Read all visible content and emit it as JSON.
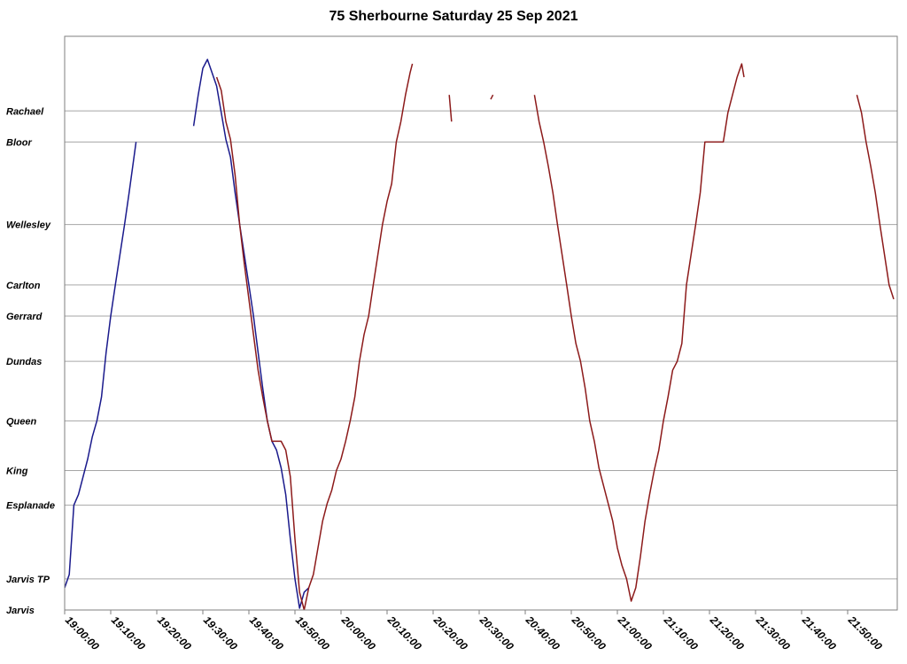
{
  "chart_data": {
    "type": "line",
    "title": "75 Sherbourne Saturday 25 Sep 2021",
    "xlabel": "",
    "ylabel": "",
    "x_unit": "time of day",
    "xlim": [
      "19:00:00",
      "21:58:00"
    ],
    "x_ticks": [
      "19:00:00",
      "19:10:00",
      "19:20:00",
      "19:30:00",
      "19:40:00",
      "19:50:00",
      "20:00:00",
      "20:10:00",
      "20:20:00",
      "20:30:00",
      "20:40:00",
      "20:50:00",
      "21:00:00",
      "21:10:00",
      "21:20:00",
      "21:30:00",
      "21:40:00",
      "21:50:00"
    ],
    "stops": [
      {
        "name": "Jarvis",
        "pos": 0
      },
      {
        "name": "Jarvis TP",
        "pos": 3.5
      },
      {
        "name": "Esplanade",
        "pos": 11.8
      },
      {
        "name": "King",
        "pos": 15.7
      },
      {
        "name": "Queen",
        "pos": 21.3
      },
      {
        "name": "Dundas",
        "pos": 28.0
      },
      {
        "name": "Gerrard",
        "pos": 33.1
      },
      {
        "name": "Carlton",
        "pos": 36.6
      },
      {
        "name": "Wellesley",
        "pos": 43.4
      },
      {
        "name": "Bloor",
        "pos": 52.7
      },
      {
        "name": "Rachael",
        "pos": 56.2
      }
    ],
    "grid": true,
    "legend": "none",
    "series": [
      {
        "color": "#1a1a8c",
        "segments": [
          [
            [
              "19:00:00",
              2.5
            ],
            [
              "19:01:00",
              4
            ],
            [
              "19:02:00",
              11.8
            ],
            [
              "19:03:00",
              13
            ],
            [
              "19:05:00",
              17
            ],
            [
              "19:06:00",
              19.5
            ],
            [
              "19:07:00",
              21.3
            ],
            [
              "19:08:00",
              24
            ],
            [
              "19:09:00",
              29
            ],
            [
              "19:10:00",
              33.1
            ],
            [
              "19:11:00",
              36.6
            ],
            [
              "19:12:00",
              40
            ],
            [
              "19:13:00",
              43.4
            ],
            [
              "19:14:00",
              47
            ],
            [
              "19:15:30",
              52.7
            ]
          ],
          [
            [
              "19:28:00",
              54.5
            ],
            [
              "19:29:00",
              58
            ],
            [
              "19:30:00",
              61
            ],
            [
              "19:31:00",
              62
            ],
            [
              "19:32:00",
              60.5
            ],
            [
              "19:33:00",
              59
            ],
            [
              "19:34:00",
              56
            ],
            [
              "19:35:00",
              53
            ],
            [
              "19:36:00",
              51
            ],
            [
              "19:37:00",
              47
            ],
            [
              "19:38:00",
              43.4
            ],
            [
              "19:39:00",
              40
            ],
            [
              "19:40:00",
              36.6
            ],
            [
              "19:41:00",
              33.1
            ],
            [
              "19:42:00",
              29
            ],
            [
              "19:43:00",
              25
            ],
            [
              "19:44:00",
              21.3
            ],
            [
              "19:45:00",
              19
            ],
            [
              "19:46:00",
              18
            ],
            [
              "19:47:00",
              16
            ],
            [
              "19:48:00",
              13
            ],
            [
              "19:49:00",
              8
            ],
            [
              "19:50:00",
              3.5
            ],
            [
              "19:51:00",
              0.2
            ],
            [
              "19:52:00",
              2
            ],
            [
              "19:53:00",
              2.5
            ]
          ]
        ]
      },
      {
        "color": "#8c1a1a",
        "segments": [
          [
            [
              "19:33:00",
              60
            ],
            [
              "19:34:00",
              58.5
            ],
            [
              "19:35:00",
              55
            ],
            [
              "19:36:00",
              53
            ],
            [
              "19:37:00",
              49
            ],
            [
              "19:38:00",
              43.4
            ],
            [
              "19:39:00",
              39
            ],
            [
              "19:40:00",
              35
            ],
            [
              "19:41:00",
              31
            ],
            [
              "19:42:00",
              27
            ],
            [
              "19:43:00",
              24
            ],
            [
              "19:44:00",
              21.3
            ],
            [
              "19:45:00",
              19
            ],
            [
              "19:47:00",
              19
            ],
            [
              "19:48:00",
              18
            ],
            [
              "19:49:00",
              15
            ],
            [
              "19:50:00",
              8
            ],
            [
              "19:51:00",
              2
            ],
            [
              "19:52:00",
              0
            ],
            [
              "19:53:00",
              2.5
            ],
            [
              "19:54:00",
              4
            ],
            [
              "19:55:00",
              7
            ],
            [
              "19:56:00",
              10
            ],
            [
              "19:57:00",
              12
            ],
            [
              "19:58:00",
              13.5
            ],
            [
              "19:59:00",
              15.7
            ],
            [
              "20:00:00",
              17
            ],
            [
              "20:01:00",
              19
            ],
            [
              "20:02:00",
              21.3
            ],
            [
              "20:03:00",
              24
            ],
            [
              "20:04:00",
              28
            ],
            [
              "20:05:00",
              31
            ],
            [
              "20:06:00",
              33.1
            ],
            [
              "20:07:00",
              36.6
            ],
            [
              "20:08:00",
              40
            ],
            [
              "20:09:00",
              43.4
            ],
            [
              "20:10:00",
              46
            ],
            [
              "20:11:00",
              48
            ],
            [
              "20:12:00",
              52.7
            ],
            [
              "20:13:00",
              55
            ],
            [
              "20:14:00",
              58
            ],
            [
              "20:15:00",
              60.5
            ],
            [
              "20:15:30",
              61.5
            ]
          ],
          [
            [
              "20:23:30",
              58
            ],
            [
              "20:24:00",
              55
            ]
          ],
          [
            [
              "20:32:30",
              57.5
            ],
            [
              "20:33:00",
              58
            ]
          ],
          [
            [
              "20:42:00",
              58
            ],
            [
              "20:43:00",
              55
            ],
            [
              "20:44:00",
              52.7
            ],
            [
              "20:45:00",
              50
            ],
            [
              "20:46:00",
              47
            ],
            [
              "20:47:00",
              43.4
            ],
            [
              "20:48:00",
              40
            ],
            [
              "20:49:00",
              36.6
            ],
            [
              "20:50:00",
              33.1
            ],
            [
              "20:51:00",
              30
            ],
            [
              "20:52:00",
              28
            ],
            [
              "20:53:00",
              25
            ],
            [
              "20:54:00",
              21.3
            ],
            [
              "20:55:00",
              19
            ],
            [
              "20:56:00",
              16
            ],
            [
              "20:57:00",
              14
            ],
            [
              "20:58:00",
              12
            ],
            [
              "20:59:00",
              10
            ],
            [
              "21:00:00",
              7
            ],
            [
              "21:01:00",
              5
            ],
            [
              "21:02:00",
              3.5
            ],
            [
              "21:03:00",
              1
            ],
            [
              "21:04:00",
              2.5
            ],
            [
              "21:05:00",
              6
            ],
            [
              "21:06:00",
              10
            ],
            [
              "21:07:00",
              13
            ],
            [
              "21:08:00",
              15.7
            ],
            [
              "21:09:00",
              18
            ],
            [
              "21:10:00",
              21.3
            ],
            [
              "21:11:00",
              24
            ],
            [
              "21:12:00",
              27
            ],
            [
              "21:13:00",
              28
            ],
            [
              "21:14:00",
              30
            ],
            [
              "21:15:00",
              36.6
            ],
            [
              "21:16:00",
              40
            ],
            [
              "21:17:00",
              43.4
            ],
            [
              "21:18:00",
              47
            ],
            [
              "21:19:00",
              52.7
            ],
            [
              "21:23:00",
              52.7
            ],
            [
              "21:24:00",
              56
            ],
            [
              "21:25:00",
              58
            ],
            [
              "21:26:00",
              60
            ],
            [
              "21:27:00",
              61.5
            ],
            [
              "21:27:30",
              60
            ]
          ],
          [
            [
              "21:52:00",
              58
            ],
            [
              "21:53:00",
              56
            ],
            [
              "21:54:00",
              52.7
            ],
            [
              "21:55:00",
              50
            ],
            [
              "21:56:00",
              47
            ],
            [
              "21:57:00",
              43.4
            ],
            [
              "21:58:00",
              40
            ],
            [
              "21:59:00",
              36.6
            ],
            [
              "22:00:00",
              35
            ]
          ]
        ]
      }
    ]
  }
}
